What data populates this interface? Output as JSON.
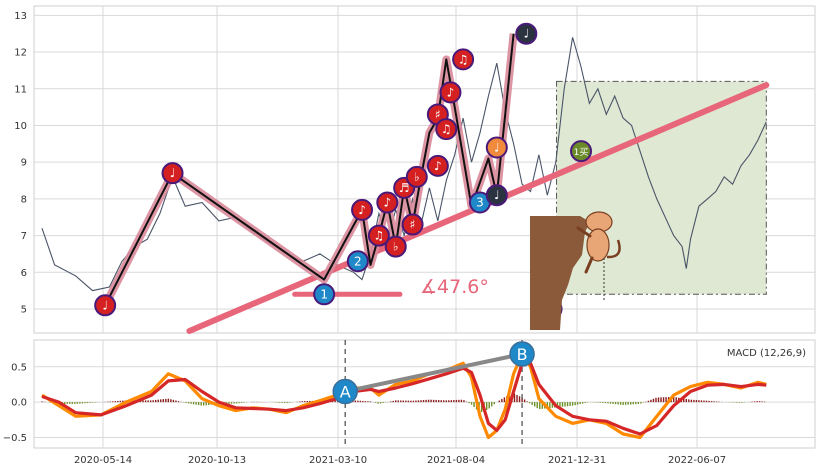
{
  "colors": {
    "price": "#4a5568",
    "trend": "#e8667a",
    "zigzag_under": "#d9899a",
    "zigzag": "#111111",
    "macd": "#ff8a00",
    "signal": "#d62728",
    "hist_pos": "#8b1a1a",
    "hist_neg": "#6b8e23",
    "divergence": "#888888",
    "box_fill": "#dfe8d3",
    "marker_blue": "#1e88c8",
    "marker_red": "#d42020",
    "marker_orange": "#f08a3c",
    "marker_dark": "#2b3340",
    "marker_green": "#6a8a2a"
  },
  "chart_data": [
    {
      "type": "line",
      "panel": "price",
      "ylim": [
        4.4,
        13.2
      ],
      "yticks": [
        "5",
        "6",
        "7",
        "8",
        "9",
        "10",
        "11",
        "12",
        "13"
      ],
      "grid": true,
      "angle_label": "∡47.6°",
      "series": [
        {
          "values": [
            [
              0,
              7.2
            ],
            [
              3,
              6.2
            ],
            [
              8,
              5.9
            ],
            [
              12,
              5.5
            ],
            [
              16,
              5.6
            ],
            [
              19,
              6.3
            ],
            [
              22,
              6.7
            ],
            [
              25,
              6.9
            ],
            [
              28,
              7.6
            ],
            [
              31,
              8.6
            ],
            [
              34,
              7.8
            ],
            [
              38,
              7.9
            ],
            [
              42,
              7.4
            ],
            [
              46,
              7.5
            ],
            [
              50,
              7.1
            ],
            [
              54,
              6.8
            ],
            [
              58,
              6.5
            ],
            [
              62,
              6.3
            ],
            [
              66,
              6.5
            ],
            [
              70,
              6.2
            ],
            [
              74,
              6.0
            ],
            [
              76,
              5.8
            ],
            [
              78,
              6.5
            ],
            [
              80,
              7.6
            ],
            [
              82,
              6.9
            ],
            [
              84,
              7.7
            ],
            [
              86,
              7.0
            ],
            [
              88,
              8.0
            ],
            [
              90,
              7.3
            ],
            [
              92,
              8.3
            ],
            [
              94,
              7.4
            ],
            [
              96,
              8.5
            ],
            [
              98,
              9.2
            ],
            [
              100,
              10.2
            ],
            [
              102,
              9.0
            ],
            [
              104,
              9.8
            ],
            [
              106,
              10.8
            ],
            [
              108,
              11.7
            ],
            [
              110,
              10.4
            ],
            [
              112,
              9.5
            ],
            [
              114,
              8.4
            ],
            [
              116,
              8.2
            ],
            [
              118,
              9.2
            ],
            [
              120,
              8.1
            ],
            [
              122,
              9.0
            ],
            [
              124,
              11.0
            ],
            [
              126,
              12.4
            ],
            [
              128,
              11.6
            ],
            [
              130,
              10.6
            ],
            [
              132,
              11.0
            ],
            [
              134,
              10.3
            ],
            [
              136,
              10.8
            ],
            [
              138,
              10.2
            ],
            [
              140,
              10.0
            ],
            [
              142,
              9.3
            ],
            [
              144,
              8.6
            ],
            [
              146,
              8.0
            ],
            [
              148,
              7.5
            ],
            [
              150,
              7.0
            ],
            [
              152,
              6.7
            ],
            [
              153,
              6.1
            ],
            [
              154,
              6.9
            ],
            [
              156,
              7.8
            ],
            [
              158,
              8.0
            ],
            [
              160,
              8.2
            ],
            [
              162,
              8.6
            ],
            [
              164,
              8.4
            ],
            [
              166,
              8.9
            ],
            [
              168,
              9.2
            ],
            [
              170,
              9.6
            ],
            [
              172,
              10.1
            ]
          ]
        }
      ],
      "trendline": {
        "points": [
          [
            35,
            4.4
          ],
          [
            172,
            11.1
          ]
        ]
      },
      "zigzag": [
        [
          15,
          5.1
        ],
        [
          31,
          8.7
        ],
        [
          67,
          5.8
        ],
        [
          76,
          7.7
        ],
        [
          78,
          6.2
        ],
        [
          80,
          7.0
        ],
        [
          82,
          7.9
        ],
        [
          84,
          6.7
        ],
        [
          86,
          8.3
        ],
        [
          88,
          7.3
        ],
        [
          90,
          8.6
        ],
        [
          92,
          9.8
        ],
        [
          94,
          10.2
        ],
        [
          96,
          11.8
        ],
        [
          98,
          10.5
        ],
        [
          102,
          7.8
        ],
        [
          106,
          9.1
        ],
        [
          108,
          8.1
        ],
        [
          112,
          12.5
        ]
      ],
      "support_segment": [
        [
          60,
          5.4
        ],
        [
          85,
          5.4
        ]
      ],
      "projection_box": {
        "x": [
          121,
          172
        ],
        "y": [
          5.4,
          11.2
        ]
      },
      "markers": [
        {
          "label": "♩",
          "x": 15,
          "y": 5.1,
          "color": "marker_red"
        },
        {
          "label": "♩",
          "x": 31,
          "y": 8.7,
          "color": "marker_red"
        },
        {
          "label": "1",
          "x": 67,
          "y": 5.4,
          "color": "marker_blue"
        },
        {
          "label": "2",
          "x": 75,
          "y": 6.3,
          "color": "marker_blue"
        },
        {
          "label": "♪",
          "x": 76,
          "y": 7.7,
          "color": "marker_red"
        },
        {
          "label": "♫",
          "x": 80,
          "y": 7.0,
          "color": "marker_red"
        },
        {
          "label": "♪",
          "x": 82,
          "y": 7.9,
          "color": "marker_red"
        },
        {
          "label": "♭",
          "x": 84,
          "y": 6.7,
          "color": "marker_red"
        },
        {
          "label": "♬",
          "x": 86,
          "y": 8.3,
          "color": "marker_red"
        },
        {
          "label": "♯",
          "x": 88,
          "y": 7.3,
          "color": "marker_red"
        },
        {
          "label": "♭",
          "x": 89,
          "y": 8.6,
          "color": "marker_red"
        },
        {
          "label": "♪",
          "x": 94,
          "y": 8.9,
          "color": "marker_red"
        },
        {
          "label": "♯",
          "x": 94,
          "y": 10.3,
          "color": "marker_red"
        },
        {
          "label": "♫",
          "x": 96,
          "y": 9.9,
          "color": "marker_red"
        },
        {
          "label": "♪",
          "x": 97,
          "y": 10.9,
          "color": "marker_red"
        },
        {
          "label": "♫",
          "x": 100,
          "y": 11.8,
          "color": "marker_red"
        },
        {
          "label": "3",
          "x": 104,
          "y": 7.9,
          "color": "marker_blue"
        },
        {
          "label": "♩",
          "x": 108,
          "y": 8.1,
          "color": "marker_dark"
        },
        {
          "label": "♩",
          "x": 108,
          "y": 9.4,
          "color": "marker_orange"
        },
        {
          "label": "♩",
          "x": 115,
          "y": 12.5,
          "color": "marker_dark"
        },
        {
          "label": "1买",
          "x": 128,
          "y": 9.3,
          "color": "marker_green"
        },
        {
          "label": "跌",
          "x": 121,
          "y": 5.0,
          "color": "marker_green"
        }
      ]
    },
    {
      "type": "line",
      "panel": "macd",
      "legend": "MACD (12,26,9)",
      "ylim": [
        -0.62,
        0.85
      ],
      "yticks": [
        "0.5",
        "0.0",
        "−0.5"
      ],
      "xtick_labels": [
        "2020-05-14",
        "2020-10-13",
        "2021-03-10",
        "2021-08-04",
        "2021-12-31",
        "2022-06-07"
      ],
      "series": [
        {
          "name": "MACD",
          "values": [
            [
              0,
              0.1
            ],
            [
              4,
              -0.05
            ],
            [
              8,
              -0.2
            ],
            [
              14,
              -0.18
            ],
            [
              20,
              0.0
            ],
            [
              26,
              0.15
            ],
            [
              30,
              0.4
            ],
            [
              34,
              0.3
            ],
            [
              38,
              0.05
            ],
            [
              42,
              -0.05
            ],
            [
              46,
              -0.12
            ],
            [
              50,
              -0.08
            ],
            [
              54,
              -0.1
            ],
            [
              58,
              -0.15
            ],
            [
              62,
              -0.05
            ],
            [
              66,
              0.02
            ],
            [
              70,
              0.1
            ],
            [
              74,
              0.2
            ],
            [
              78,
              0.2
            ],
            [
              80,
              0.1
            ],
            [
              84,
              0.25
            ],
            [
              88,
              0.3
            ],
            [
              92,
              0.4
            ],
            [
              96,
              0.45
            ],
            [
              100,
              0.55
            ],
            [
              102,
              0.35
            ],
            [
              104,
              -0.2
            ],
            [
              106,
              -0.5
            ],
            [
              108,
              -0.4
            ],
            [
              110,
              -0.1
            ],
            [
              112,
              0.4
            ],
            [
              114,
              0.68
            ],
            [
              116,
              0.5
            ],
            [
              118,
              0.05
            ],
            [
              122,
              -0.2
            ],
            [
              126,
              -0.3
            ],
            [
              130,
              -0.25
            ],
            [
              134,
              -0.3
            ],
            [
              138,
              -0.45
            ],
            [
              142,
              -0.5
            ],
            [
              146,
              -0.2
            ],
            [
              150,
              0.1
            ],
            [
              154,
              0.22
            ],
            [
              158,
              0.28
            ],
            [
              162,
              0.25
            ],
            [
              166,
              0.2
            ],
            [
              170,
              0.28
            ],
            [
              172,
              0.25
            ]
          ]
        },
        {
          "name": "Signal",
          "values": [
            [
              0,
              0.08
            ],
            [
              4,
              0.0
            ],
            [
              8,
              -0.15
            ],
            [
              14,
              -0.18
            ],
            [
              20,
              -0.05
            ],
            [
              26,
              0.1
            ],
            [
              30,
              0.3
            ],
            [
              34,
              0.32
            ],
            [
              38,
              0.15
            ],
            [
              42,
              0.0
            ],
            [
              46,
              -0.08
            ],
            [
              50,
              -0.09
            ],
            [
              54,
              -0.1
            ],
            [
              58,
              -0.12
            ],
            [
              62,
              -0.08
            ],
            [
              66,
              -0.02
            ],
            [
              70,
              0.05
            ],
            [
              74,
              0.15
            ],
            [
              78,
              0.18
            ],
            [
              80,
              0.15
            ],
            [
              84,
              0.2
            ],
            [
              88,
              0.26
            ],
            [
              92,
              0.33
            ],
            [
              96,
              0.4
            ],
            [
              100,
              0.48
            ],
            [
              102,
              0.42
            ],
            [
              104,
              0.1
            ],
            [
              106,
              -0.3
            ],
            [
              108,
              -0.4
            ],
            [
              110,
              -0.25
            ],
            [
              112,
              0.15
            ],
            [
              114,
              0.55
            ],
            [
              116,
              0.55
            ],
            [
              118,
              0.25
            ],
            [
              122,
              -0.05
            ],
            [
              126,
              -0.2
            ],
            [
              130,
              -0.25
            ],
            [
              134,
              -0.27
            ],
            [
              138,
              -0.37
            ],
            [
              142,
              -0.45
            ],
            [
              146,
              -0.33
            ],
            [
              150,
              -0.05
            ],
            [
              154,
              0.15
            ],
            [
              158,
              0.24
            ],
            [
              162,
              0.25
            ],
            [
              166,
              0.22
            ],
            [
              170,
              0.25
            ],
            [
              172,
              0.24
            ]
          ]
        }
      ],
      "divergence": [
        [
          72,
          0.15
        ],
        [
          114,
          0.68
        ]
      ],
      "vlines": [
        72,
        114
      ],
      "divergence_labels": [
        {
          "label": "A",
          "x": 72,
          "y": 0.15
        },
        {
          "label": "B",
          "x": 114,
          "y": 0.68
        }
      ]
    }
  ]
}
